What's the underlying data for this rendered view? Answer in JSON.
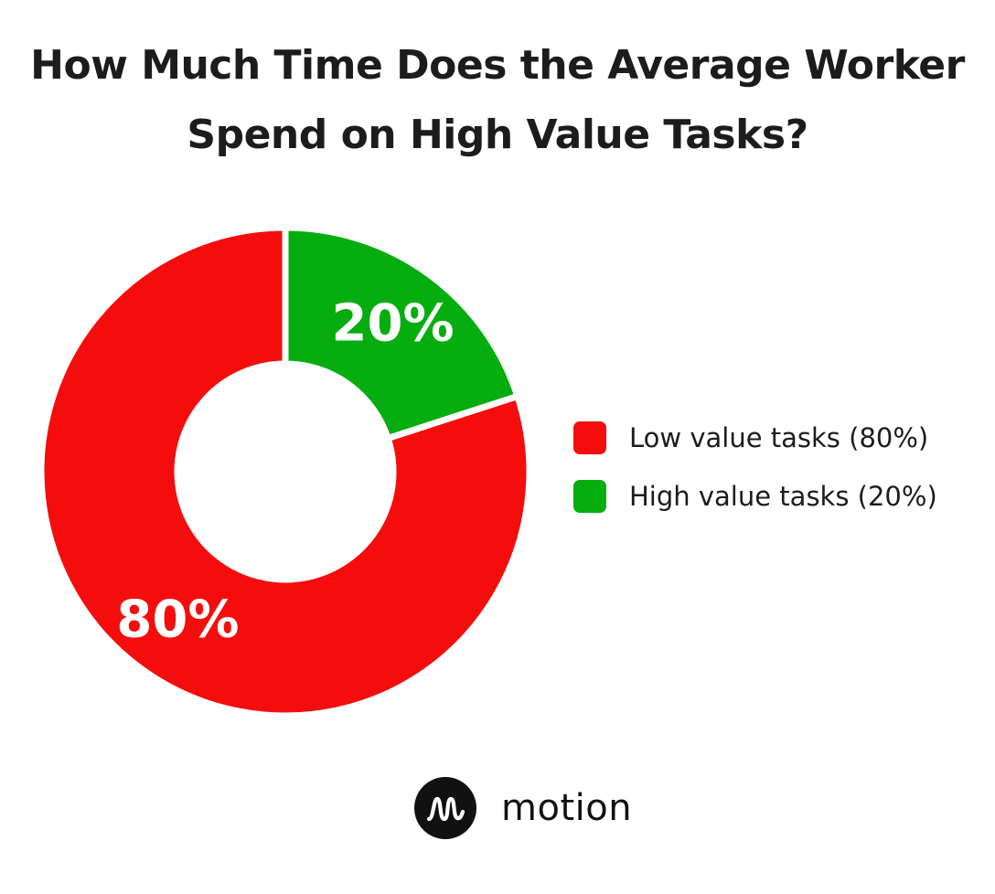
{
  "colors": {
    "low": "#f50d0d",
    "high": "#06ad0f",
    "text": "#1c1c1e"
  },
  "chart_data": {
    "type": "pie",
    "variant": "donut",
    "title": "How Much Time Does the Average Worker Spend on High Value Tasks?",
    "title_lines": [
      "How Much Time Does the Average Worker",
      "Spend on High Value Tasks?"
    ],
    "categories": [
      "High value tasks (20%)",
      "Low value tasks (80%)"
    ],
    "values": [
      20,
      80
    ],
    "data_labels": [
      "20%",
      "80%"
    ],
    "colors": [
      "#06ad0f",
      "#f50d0d"
    ],
    "legend": {
      "placement": "right",
      "items": [
        {
          "label": "Low value tasks (80%)",
          "color": "#f50d0d"
        },
        {
          "label": "High value tasks (20%)",
          "color": "#06ad0f"
        }
      ]
    }
  },
  "brand": {
    "logo_icon": "motion-logo-icon",
    "name": "motion"
  }
}
